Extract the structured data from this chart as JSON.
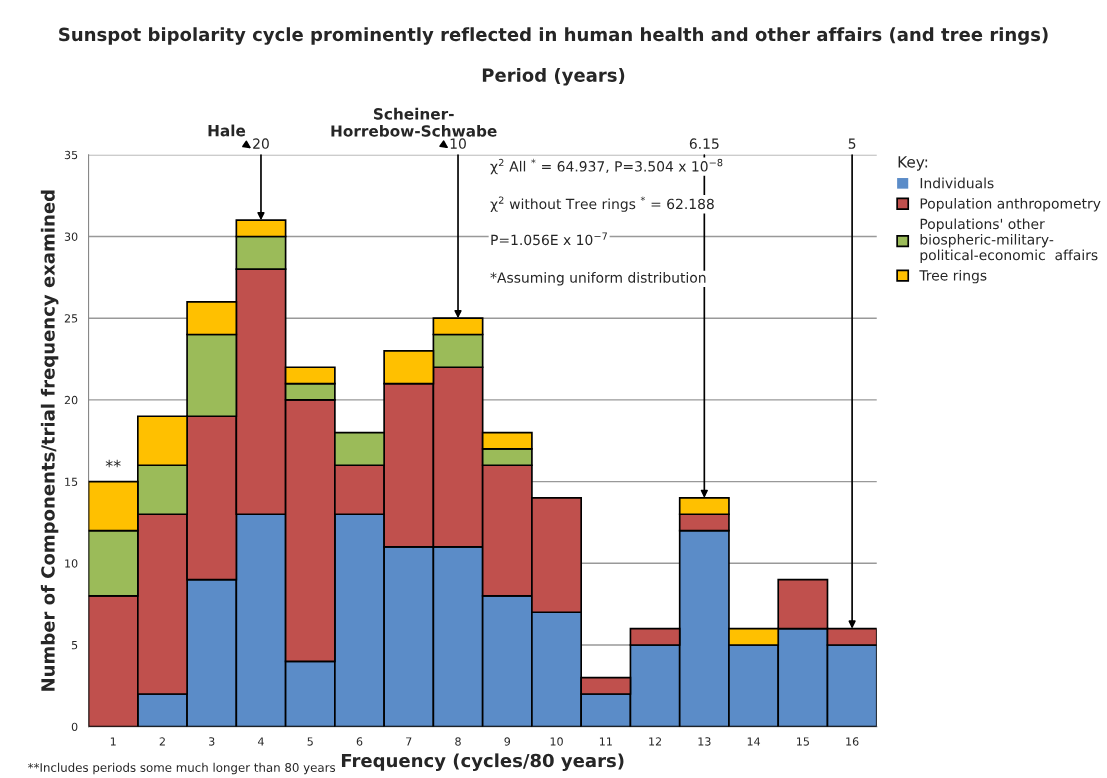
{
  "chart_data": {
    "type": "bar",
    "stacked": true,
    "title": "Sunspot bipolarity cycle prominently reflected in human health and other affairs (and tree rings)",
    "subtitle": "Period (years)",
    "xlabel": "Frequency (cycles/80 years)",
    "ylabel": "Number of Components/trial frequency examined",
    "legend_title": "Key:",
    "categories": [
      "1",
      "2",
      "3",
      "4",
      "5",
      "6",
      "7",
      "8",
      "9",
      "10",
      "11",
      "12",
      "13",
      "14",
      "15",
      "16"
    ],
    "series": [
      {
        "name": "Individuals",
        "color": "#5b8cc8",
        "values": [
          0,
          2,
          9,
          13,
          4,
          13,
          11,
          11,
          8,
          7,
          2,
          5,
          12,
          5,
          6,
          5
        ]
      },
      {
        "name": "Population anthropometry",
        "color": "#c0504d",
        "values": [
          8,
          11,
          10,
          15,
          16,
          3,
          10,
          11,
          8,
          7,
          1,
          1,
          1,
          0,
          3,
          1
        ]
      },
      {
        "name": "Populations' other\nbiospheric-military-\npolitical-economic  affairs",
        "color": "#9bbb59",
        "values": [
          4,
          3,
          5,
          2,
          1,
          2,
          0,
          2,
          1,
          0,
          0,
          0,
          0,
          0,
          0,
          0
        ]
      },
      {
        "name": "Tree rings",
        "color": "#ffc000",
        "values": [
          3,
          3,
          2,
          1,
          1,
          0,
          2,
          1,
          1,
          0,
          0,
          0,
          1,
          1,
          0,
          0
        ]
      }
    ],
    "ylim": [
      0,
      35
    ],
    "yticks": [
      0,
      5,
      10,
      15,
      20,
      25,
      30,
      35
    ],
    "grid": "y",
    "legend": "right",
    "annotations": [
      {
        "text": "20",
        "x": "4",
        "y": 31
      },
      {
        "text": "10",
        "x": "8",
        "y": 25
      },
      {
        "text": "6.15",
        "x": "13",
        "y": 14
      },
      {
        "text": "5",
        "x": "16",
        "y": 6
      },
      "Hale",
      "Scheiner-\nHorrebow-Schwabe",
      "χ$^{2}$ All $^{*}$ = 64.937, P=3.504 x 10$^{−8}$",
      "χ$^{2}$ without Tree rings $^{*}$ = 62.188",
      "P=1.056E x 10$^{−7}$",
      "*Assuming uniform distribution",
      "**",
      "**Includes periods some much longer than 80 years"
    ]
  }
}
